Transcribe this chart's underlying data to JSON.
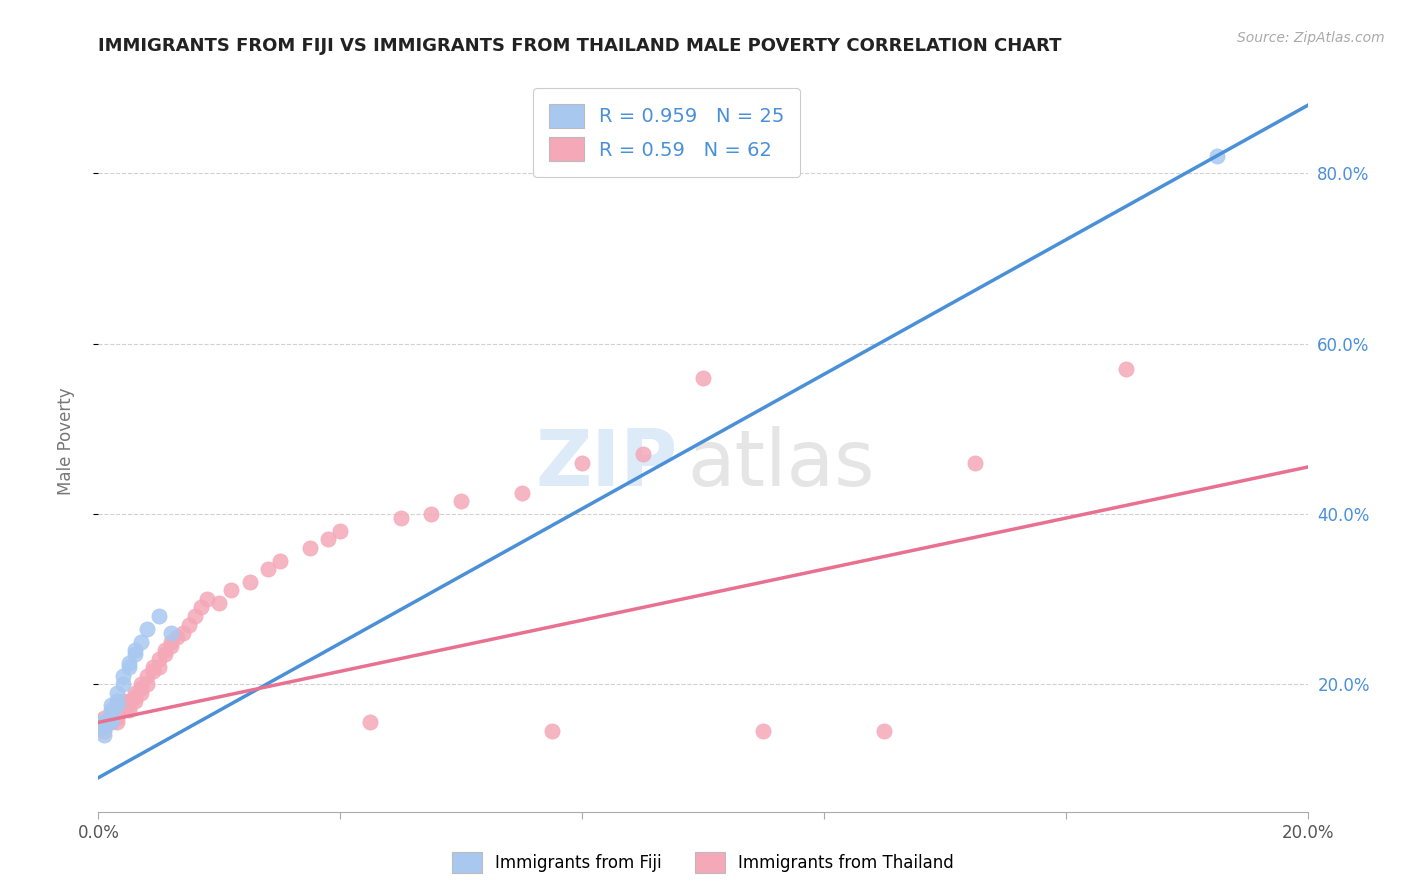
{
  "title": "IMMIGRANTS FROM FIJI VS IMMIGRANTS FROM THAILAND MALE POVERTY CORRELATION CHART",
  "source": "Source: ZipAtlas.com",
  "ylabel_label": "Male Poverty",
  "fiji_R": 0.959,
  "fiji_N": 25,
  "thailand_R": 0.59,
  "thailand_N": 62,
  "fiji_color": "#a8c8f0",
  "thailand_color": "#f4a8b8",
  "fiji_line_color": "#4a90d9",
  "thailand_line_color": "#e87090",
  "fiji_scatter_x": [
    0.0,
    0.001,
    0.001,
    0.001,
    0.001,
    0.002,
    0.002,
    0.002,
    0.002,
    0.002,
    0.002,
    0.003,
    0.003,
    0.003,
    0.004,
    0.004,
    0.005,
    0.005,
    0.006,
    0.006,
    0.007,
    0.008,
    0.01,
    0.012,
    0.185
  ],
  "fiji_scatter_y": [
    0.155,
    0.155,
    0.14,
    0.15,
    0.155,
    0.155,
    0.16,
    0.16,
    0.165,
    0.17,
    0.175,
    0.175,
    0.18,
    0.19,
    0.2,
    0.21,
    0.22,
    0.225,
    0.235,
    0.24,
    0.25,
    0.265,
    0.28,
    0.26,
    0.82
  ],
  "thailand_scatter_x": [
    0.0,
    0.001,
    0.001,
    0.001,
    0.001,
    0.002,
    0.002,
    0.002,
    0.003,
    0.003,
    0.003,
    0.003,
    0.003,
    0.004,
    0.004,
    0.004,
    0.005,
    0.005,
    0.005,
    0.006,
    0.006,
    0.006,
    0.007,
    0.007,
    0.007,
    0.008,
    0.008,
    0.009,
    0.009,
    0.01,
    0.01,
    0.011,
    0.011,
    0.012,
    0.012,
    0.013,
    0.014,
    0.015,
    0.016,
    0.017,
    0.018,
    0.02,
    0.022,
    0.025,
    0.028,
    0.03,
    0.035,
    0.038,
    0.04,
    0.045,
    0.05,
    0.055,
    0.06,
    0.07,
    0.075,
    0.08,
    0.09,
    0.1,
    0.11,
    0.13,
    0.145,
    0.17
  ],
  "thailand_scatter_y": [
    0.155,
    0.145,
    0.155,
    0.155,
    0.16,
    0.155,
    0.16,
    0.165,
    0.16,
    0.165,
    0.17,
    0.175,
    0.155,
    0.17,
    0.175,
    0.18,
    0.17,
    0.175,
    0.18,
    0.18,
    0.185,
    0.19,
    0.19,
    0.195,
    0.2,
    0.2,
    0.21,
    0.215,
    0.22,
    0.22,
    0.23,
    0.235,
    0.24,
    0.245,
    0.25,
    0.255,
    0.26,
    0.27,
    0.28,
    0.29,
    0.3,
    0.295,
    0.31,
    0.32,
    0.335,
    0.345,
    0.36,
    0.37,
    0.38,
    0.155,
    0.395,
    0.4,
    0.415,
    0.425,
    0.145,
    0.46,
    0.47,
    0.56,
    0.145,
    0.145,
    0.46,
    0.57
  ],
  "fiji_line_x0": 0.0,
  "fiji_line_y0": 0.09,
  "fiji_line_x1": 0.2,
  "fiji_line_y1": 0.88,
  "thailand_line_x0": 0.0,
  "thailand_line_y0": 0.155,
  "thailand_line_x1": 0.2,
  "thailand_line_y1": 0.455,
  "xlim": [
    0.0,
    0.2
  ],
  "ylim": [
    0.05,
    0.92
  ],
  "right_ytick_vals": [
    0.2,
    0.4,
    0.6,
    0.8
  ],
  "right_ytick_labels": [
    "20.0%",
    "40.0%",
    "60.0%",
    "80.0%"
  ],
  "background_color": "#ffffff",
  "grid_color": "#cccccc"
}
